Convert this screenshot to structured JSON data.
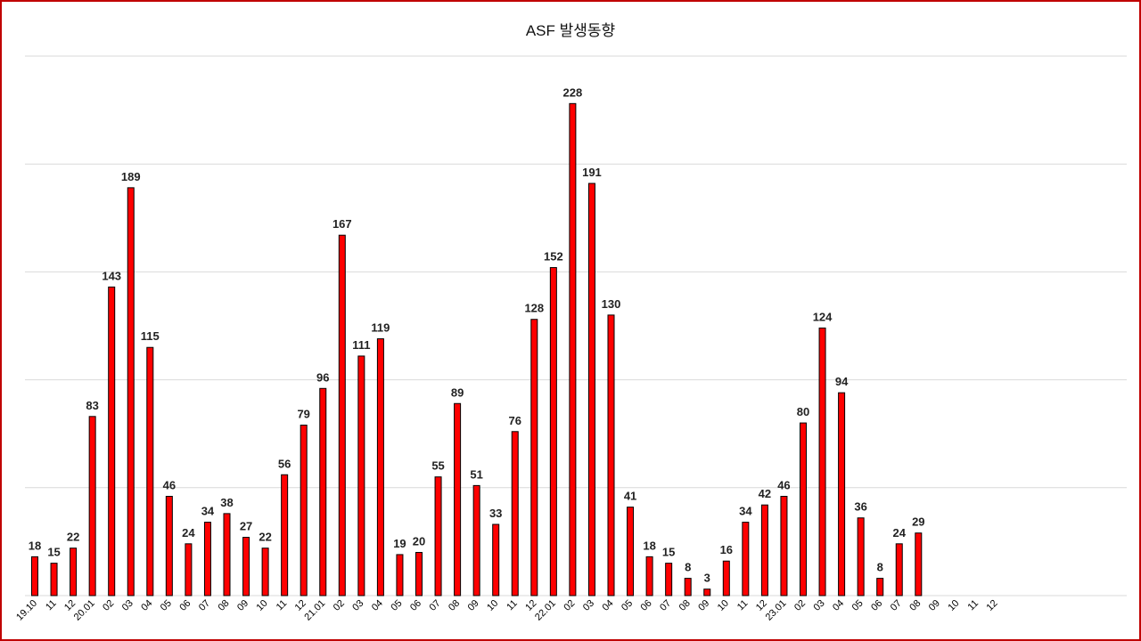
{
  "chart_data": {
    "type": "bar",
    "title": "ASF 발생동향",
    "xlabel": "",
    "ylabel": "",
    "ylim": [
      0,
      250
    ],
    "grid": true,
    "legend": "none",
    "colors": {
      "bar": "#ff0000",
      "bar_edge": "#000000",
      "grid": "#d9d9d9"
    },
    "categories": [
      "19.10",
      "11",
      "12",
      "20.01",
      "02",
      "03",
      "04",
      "05",
      "06",
      "07",
      "08",
      "09",
      "10",
      "11",
      "12",
      "21.01",
      "02",
      "03",
      "04",
      "05",
      "06",
      "07",
      "08",
      "09",
      "10",
      "11",
      "12",
      "22.01",
      "02",
      "03",
      "04",
      "05",
      "06",
      "07",
      "08",
      "09",
      "10",
      "11",
      "12",
      "23.01",
      "02",
      "03",
      "04",
      "05",
      "06",
      "07",
      "08",
      "09",
      "10",
      "11",
      "12"
    ],
    "values": [
      18,
      15,
      22,
      83,
      143,
      189,
      115,
      46,
      24,
      34,
      38,
      27,
      22,
      56,
      79,
      96,
      167,
      111,
      119,
      19,
      20,
      55,
      89,
      51,
      33,
      76,
      128,
      152,
      228,
      191,
      130,
      41,
      18,
      15,
      8,
      3,
      16,
      34,
      42,
      46,
      80,
      124,
      94,
      36,
      8,
      24,
      29,
      null,
      null,
      null,
      null
    ],
    "value_labels": [
      "18",
      "15",
      "22",
      "83",
      "143",
      "189",
      "115",
      "46",
      "24",
      "34",
      "38",
      "27",
      "22",
      "56",
      "79",
      "96",
      "167",
      "111",
      "119",
      "19",
      "20",
      "55",
      "89",
      "51",
      "33",
      "76",
      "128",
      "152",
      "228",
      "191",
      "130",
      "41",
      "18",
      "15",
      "8",
      "3",
      "16",
      "34",
      "42",
      "46",
      "80",
      "124",
      "94",
      "36",
      "8",
      "24",
      "29",
      "",
      "",
      "",
      ""
    ]
  }
}
